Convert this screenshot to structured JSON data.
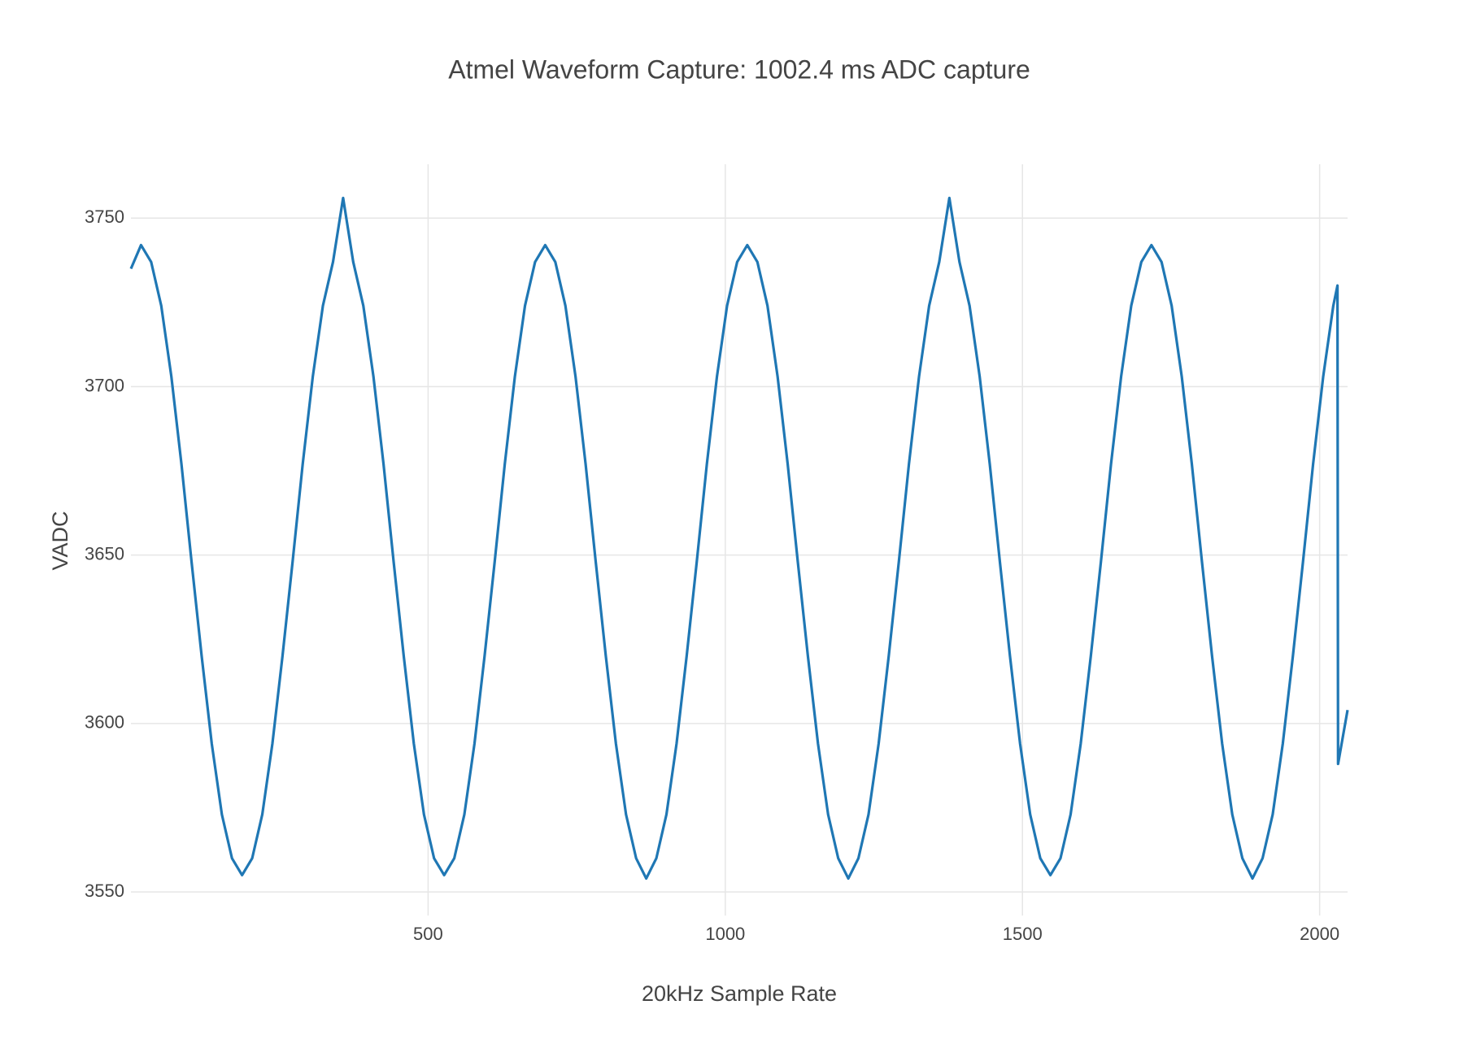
{
  "chart_data": {
    "type": "line",
    "title": "Atmel Waveform Capture: 1002.4 ms ADC capture",
    "x_label": "20kHz Sample Rate",
    "y_label": "VADC",
    "color": "#1f77b4",
    "grid": true,
    "xlim": [
      0,
      2047
    ],
    "xticks": [
      500,
      1000,
      1500,
      2000
    ],
    "ylim": [
      3543,
      3766
    ],
    "yticks": [
      3550,
      3600,
      3650,
      3700,
      3750
    ],
    "x": [
      0,
      17,
      34,
      51,
      68,
      85,
      102,
      119,
      136,
      153,
      170,
      187,
      204,
      221,
      238,
      255,
      272,
      289,
      306,
      323,
      340,
      357,
      374,
      391,
      408,
      425,
      442,
      459,
      476,
      493,
      510,
      527,
      544,
      561,
      578,
      595,
      612,
      629,
      646,
      663,
      680,
      697,
      714,
      731,
      748,
      765,
      782,
      799,
      816,
      833,
      850,
      867,
      884,
      901,
      918,
      935,
      952,
      969,
      986,
      1003,
      1020,
      1037,
      1054,
      1071,
      1088,
      1105,
      1122,
      1139,
      1156,
      1173,
      1190,
      1207,
      1224,
      1241,
      1258,
      1275,
      1292,
      1309,
      1326,
      1343,
      1360,
      1377,
      1394,
      1411,
      1428,
      1445,
      1462,
      1479,
      1496,
      1513,
      1530,
      1547,
      1564,
      1581,
      1598,
      1615,
      1632,
      1649,
      1666,
      1683,
      1700,
      1717,
      1734,
      1751,
      1768,
      1785,
      1802,
      1819,
      1836,
      1853,
      1870,
      1887,
      1904,
      1921,
      1938,
      1955,
      1972,
      1989,
      2006,
      2023,
      2030,
      2031,
      2040,
      2047
    ],
    "values": [
      3735,
      3742,
      3737,
      3724,
      3703,
      3677,
      3648,
      3620,
      3594,
      3573,
      3560,
      3555,
      3560,
      3573,
      3594,
      3620,
      3648,
      3677,
      3703,
      3724,
      3737,
      3756,
      3737,
      3724,
      3703,
      3677,
      3648,
      3620,
      3594,
      3573,
      3560,
      3555,
      3560,
      3573,
      3594,
      3620,
      3648,
      3677,
      3703,
      3724,
      3737,
      3742,
      3737,
      3724,
      3703,
      3677,
      3648,
      3620,
      3594,
      3573,
      3560,
      3554,
      3560,
      3573,
      3594,
      3620,
      3648,
      3677,
      3703,
      3724,
      3737,
      3742,
      3737,
      3724,
      3703,
      3677,
      3648,
      3620,
      3594,
      3573,
      3560,
      3554,
      3560,
      3573,
      3594,
      3620,
      3648,
      3677,
      3703,
      3724,
      3737,
      3756,
      3737,
      3724,
      3703,
      3677,
      3648,
      3620,
      3594,
      3573,
      3560,
      3555,
      3560,
      3573,
      3594,
      3620,
      3648,
      3677,
      3703,
      3724,
      3737,
      3742,
      3737,
      3724,
      3703,
      3677,
      3648,
      3620,
      3594,
      3573,
      3560,
      3554,
      3560,
      3573,
      3594,
      3620,
      3648,
      3677,
      3703,
      3724,
      3730,
      3588,
      3597,
      3604
    ]
  }
}
